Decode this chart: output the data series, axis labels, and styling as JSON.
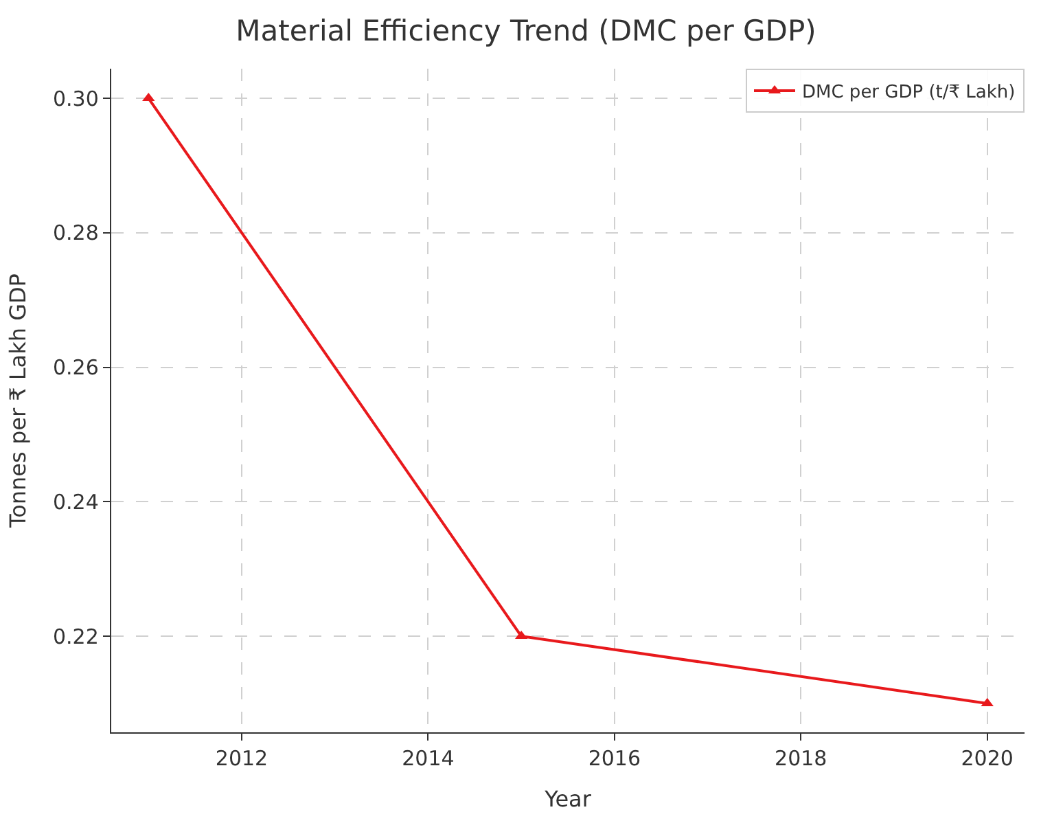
{
  "chart_data": {
    "type": "line",
    "title": "Material Efficiency Trend (DMC per GDP)",
    "xlabel": "Year",
    "ylabel": "Tonnes per ₹ Lakh GDP",
    "x": [
      2011,
      2015,
      2020
    ],
    "series": [
      {
        "name": "DMC per GDP (t/₹ Lakh)",
        "color": "#e8191c",
        "values": [
          0.3,
          0.22,
          0.21
        ]
      }
    ],
    "xlim": [
      2010.6,
      2020.4
    ],
    "xticks": [
      2012,
      2014,
      2016,
      2018,
      2020
    ],
    "ylim": [
      0.2057,
      0.3044
    ],
    "yticks": [
      {
        "value": 0.22,
        "label": "0.22"
      },
      {
        "value": 0.24,
        "label": "0.24"
      },
      {
        "value": 0.26,
        "label": "0.26"
      },
      {
        "value": 0.28,
        "label": "0.28"
      },
      {
        "value": 0.3,
        "label": "0.30"
      }
    ],
    "grid": true,
    "legend": "top right",
    "marker": "triangle",
    "line_style": "solid"
  }
}
